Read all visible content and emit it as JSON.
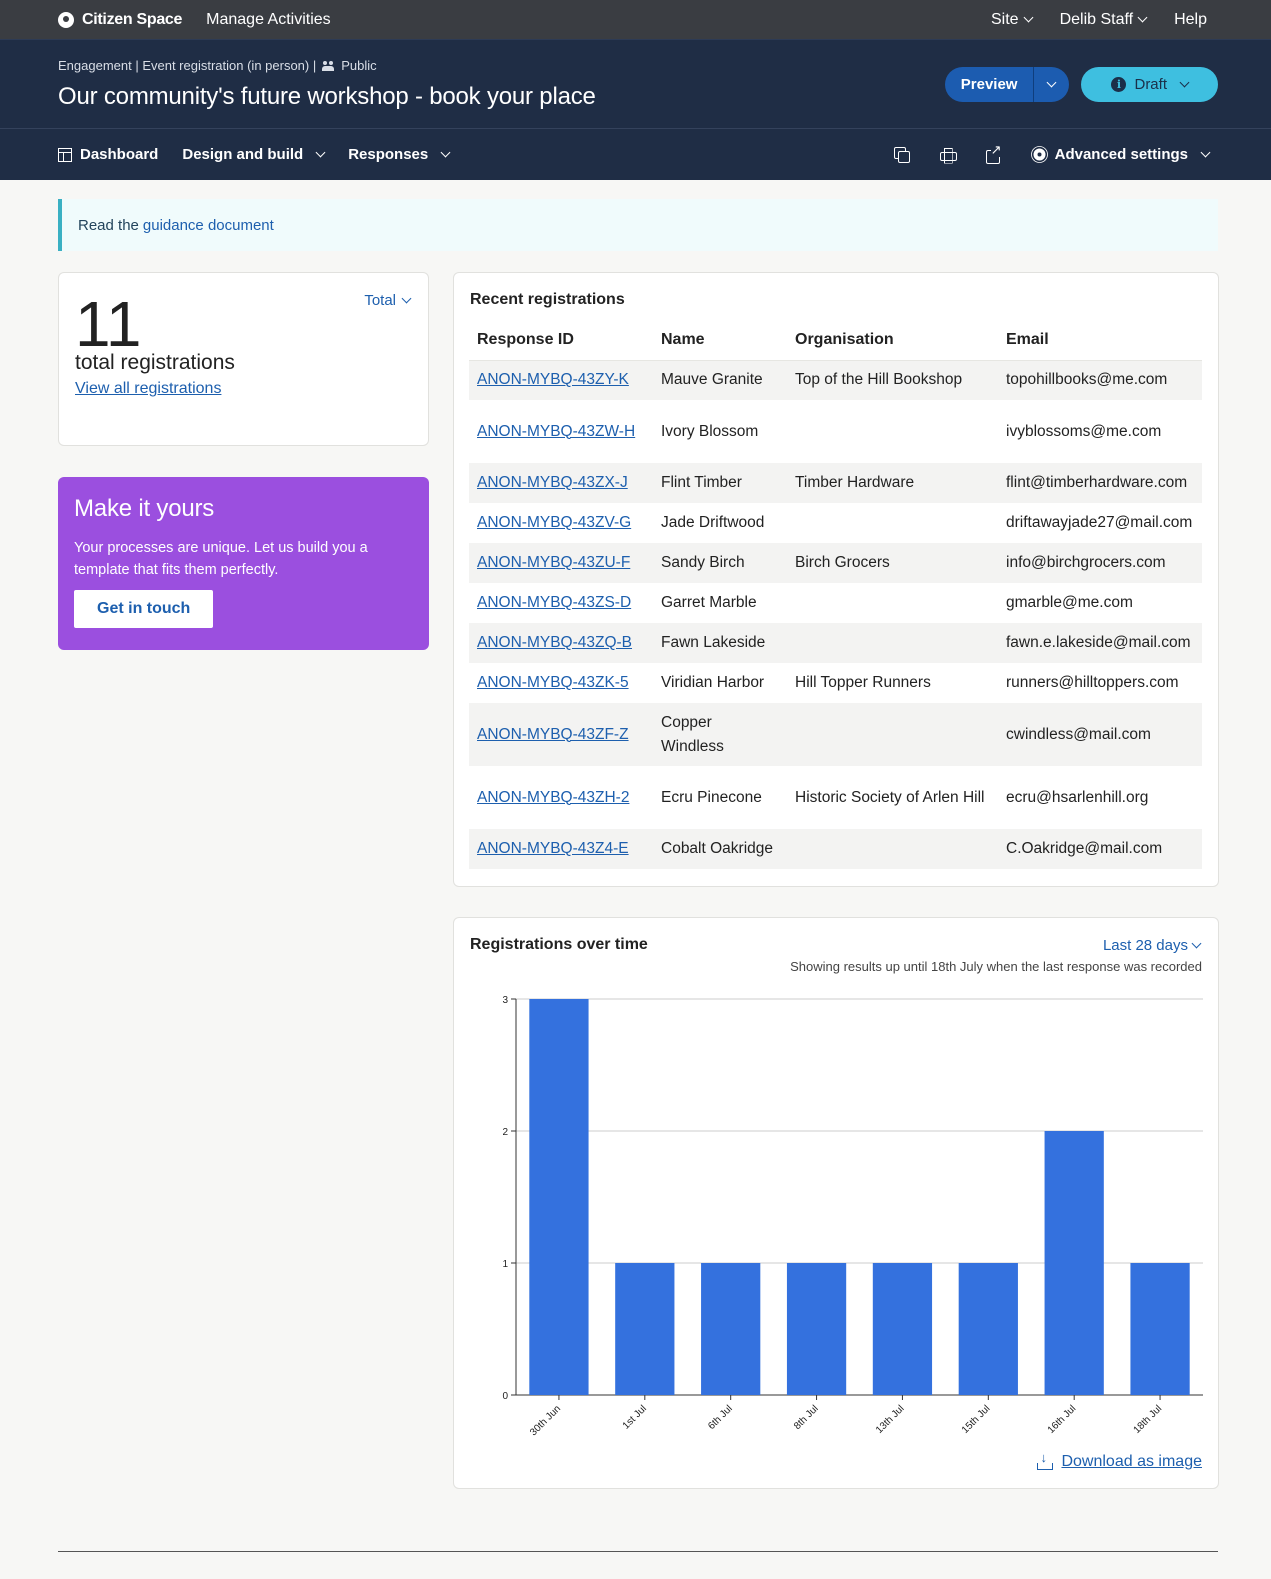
{
  "topbar": {
    "brand": "Citizen Space",
    "manage": "Manage Activities",
    "nav": [
      "Site",
      "Delib Staff",
      "Help"
    ]
  },
  "header": {
    "crumb_type": "Engagement | Event registration (in person) |",
    "crumb_visibility": "Public",
    "title": "Our community's future workshop - book your place",
    "preview_label": "Preview",
    "draft_label": "Draft"
  },
  "subnav": {
    "dashboard": "Dashboard",
    "design": "Design and build",
    "responses": "Responses",
    "advanced": "Advanced settings"
  },
  "guidance": {
    "prefix": "Read the",
    "link": "guidance document"
  },
  "totals": {
    "count": "11",
    "label": "total registrations",
    "link": "View all registrations",
    "select": "Total"
  },
  "promo": {
    "title": "Make it yours",
    "text": "Your processes are unique. Let us build you a template that fits them perfectly.",
    "button": "Get in touch"
  },
  "recent": {
    "title": "Recent registrations",
    "columns": [
      "Response ID",
      "Name",
      "Organisation",
      "Email"
    ],
    "rows": [
      {
        "id": "ANON-MYBQ-43ZY-K",
        "name": "Mauve Granite",
        "org": "Top of the Hill Bookshop",
        "email": "topohillbooks@me.com"
      },
      {
        "id": "ANON-MYBQ-43ZW-H",
        "name": "Ivory Blossom",
        "org": "",
        "email": "ivyblossoms@me.com"
      },
      {
        "id": "ANON-MYBQ-43ZX-J",
        "name": "Flint Timber",
        "org": "Timber Hardware",
        "email": "flint@timberhardware.com"
      },
      {
        "id": "ANON-MYBQ-43ZV-G",
        "name": "Jade Driftwood",
        "org": "",
        "email": "driftawayjade27@mail.com"
      },
      {
        "id": "ANON-MYBQ-43ZU-F",
        "name": "Sandy Birch",
        "org": "Birch Grocers",
        "email": "info@birchgrocers.com"
      },
      {
        "id": "ANON-MYBQ-43ZS-D",
        "name": "Garret Marble",
        "org": "",
        "email": "gmarble@me.com"
      },
      {
        "id": "ANON-MYBQ-43ZQ-B",
        "name": "Fawn Lakeside",
        "org": "",
        "email": "fawn.e.lakeside@mail.com"
      },
      {
        "id": "ANON-MYBQ-43ZK-5",
        "name": "Viridian Harbor",
        "org": "Hill Topper Runners",
        "email": "runners@hilltoppers.com"
      },
      {
        "id": "ANON-MYBQ-43ZF-Z",
        "name": "Copper Windless",
        "org": "",
        "email": "cwindless@mail.com"
      },
      {
        "id": "ANON-MYBQ-43ZH-2",
        "name": "Ecru Pinecone",
        "org": "Historic Society of Arlen Hill",
        "email": "ecru@hsarlenhill.org"
      },
      {
        "id": "ANON-MYBQ-43Z4-E",
        "name": "Cobalt Oakridge",
        "org": "",
        "email": "C.Oakridge@mail.com"
      }
    ]
  },
  "chart_card": {
    "title": "Registrations over time",
    "range": "Last 28 days",
    "note": "Showing results up until 18th July when the last response was recorded",
    "download": "Download as image"
  },
  "chart_data": {
    "type": "bar",
    "categories": [
      "30th Jun",
      "1st Jul",
      "6th Jul",
      "8th Jul",
      "13th Jul",
      "15th Jul",
      "16th Jul",
      "18th Jul"
    ],
    "values": [
      3,
      1,
      1,
      1,
      1,
      1,
      2,
      1
    ],
    "ylim": [
      0,
      3
    ],
    "yticks": [
      0,
      1,
      2,
      3
    ],
    "grid": true,
    "bar_color": "#3471de"
  },
  "colors": {
    "topbar": "#3a3d42",
    "header": "#1f2d45",
    "accent": "#1d5fae",
    "draft": "#3ebfe0",
    "promo": "#9b4fdf"
  }
}
